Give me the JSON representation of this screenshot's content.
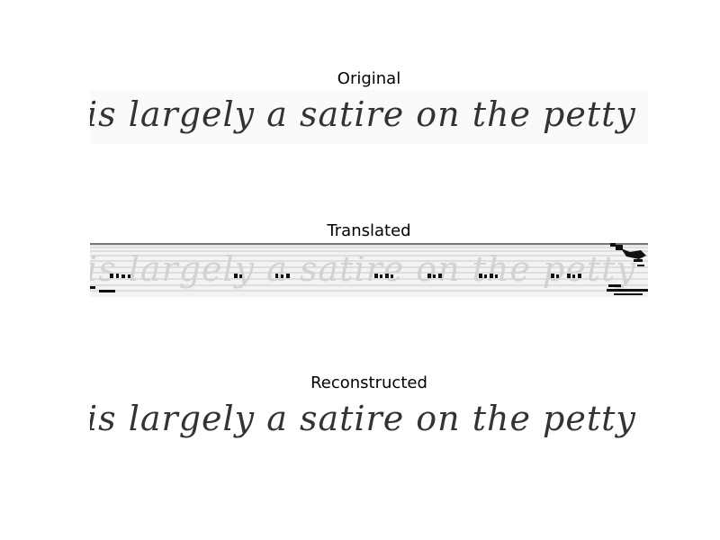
{
  "panels": [
    {
      "title": "Original",
      "text": "is largely a satire on the petty court"
    },
    {
      "title": "Translated",
      "text": "is largely a satire on the petty court"
    },
    {
      "title": "Reconstructed",
      "text": "is largely a satire on the petty cou"
    }
  ],
  "colors": {
    "background": "#ffffff",
    "ink": "#333333",
    "faded_ink": "#d2d2d2",
    "artifact": "#000000"
  }
}
